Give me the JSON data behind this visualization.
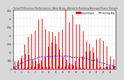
{
  "title": "Solar PV/Inverter Performance  West Array  Actual & Running Average Power Output",
  "title_color": "#404040",
  "bg_color": "#d8d8d8",
  "plot_bg": "#ffffff",
  "bar_color": "#ff0000",
  "avg_color": "#0000ff",
  "grid_color": "#b0b0b0",
  "legend_actual": "Actual Output",
  "legend_avg": "Running Avg",
  "legend_actual_color": "#ff0000",
  "legend_avg_color": "#0000ff",
  "ylim": [
    0,
    3500
  ],
  "ytick_labels": [
    "0",
    "500",
    "1k",
    "1.5k",
    "2k",
    "2.5k",
    "3k",
    "3.5k"
  ],
  "ytick_vals": [
    0,
    500,
    1000,
    1500,
    2000,
    2500,
    3000,
    3500
  ],
  "num_days": 30,
  "pts_per_day": 48,
  "seed": 1234
}
